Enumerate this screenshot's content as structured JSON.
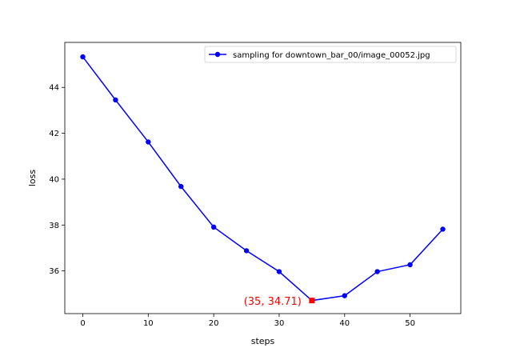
{
  "chart_data": {
    "type": "line",
    "title": "",
    "xlabel": "steps",
    "ylabel": "loss",
    "xlim": [
      -2.75,
      57.75
    ],
    "ylim": [
      34.14,
      45.96
    ],
    "xticks": [
      0,
      10,
      20,
      30,
      40,
      50
    ],
    "yticks": [
      36,
      38,
      40,
      42,
      44
    ],
    "grid": false,
    "legend_position": "top-right",
    "series": [
      {
        "name": "sampling for downtown_bar_00/image_00052.jpg",
        "color": "#0000ff",
        "marker": "circle",
        "x": [
          0,
          5,
          10,
          15,
          20,
          25,
          30,
          35,
          40,
          45,
          50,
          55
        ],
        "y": [
          45.33,
          43.45,
          41.62,
          39.68,
          37.91,
          36.88,
          35.97,
          34.71,
          34.92,
          35.97,
          36.27,
          37.82
        ]
      }
    ],
    "highlight": {
      "x": 35,
      "y": 34.71,
      "color": "#ff0000",
      "marker": "square",
      "label": "(35, 34.71)"
    }
  }
}
